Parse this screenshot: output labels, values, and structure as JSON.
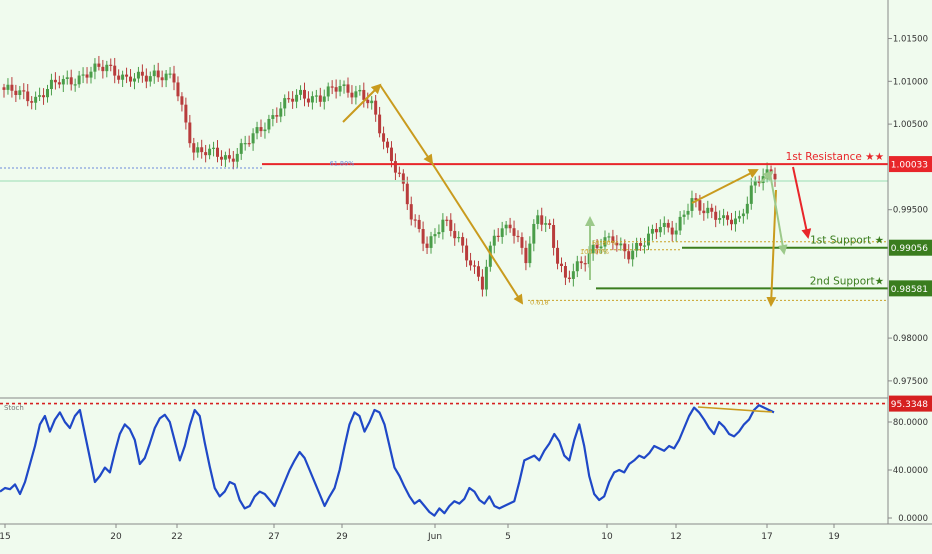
{
  "colors": {
    "background": "#f0fbee",
    "candle_up": "#4a9d49",
    "candle_down": "#b83c3c",
    "resistance": "#e8262a",
    "support": "#3a7d1e",
    "arrow_gold": "#c99b1e",
    "arrow_green": "#9cc98a",
    "fib_line": "#c9a227",
    "stoch": "#1f48c7",
    "stoch_ref": "#d62020",
    "axis_text": "#333333",
    "ma_line": "#7bd09e"
  },
  "chart_data": [
    {
      "type": "candlestick",
      "title": "",
      "ylim": [
        0.973,
        1.0195
      ],
      "ytick_labels": [
        "1.01500",
        "1.01000",
        "1.00500",
        "0.99500",
        "0.98000",
        "0.97500"
      ],
      "ytick_values": [
        1.015,
        1.01,
        1.005,
        0.995,
        0.98,
        0.975
      ],
      "price_tags": [
        {
          "name": "resistance",
          "label": "1.00033",
          "value": 1.00033
        },
        {
          "name": "support-1",
          "label": "0.99056",
          "value": 0.99056
        },
        {
          "name": "support-2",
          "label": "0.98581",
          "value": 0.98581
        }
      ],
      "levels": [
        {
          "name": "resistance",
          "label": "1st Resistance ★★",
          "value": 1.00033
        },
        {
          "name": "support-1",
          "label": "1st Support ★",
          "value": 0.99056
        },
        {
          "name": "support-2",
          "label": "2nd Support★",
          "value": 0.98581
        }
      ],
      "fib_labels": [
        {
          "label": "61.80%",
          "value": 1.0005
        },
        {
          "label": "0.618",
          "value": 0.9843
        },
        {
          "label": "61.80%",
          "value": 0.9912
        },
        {
          "label": "100.00%",
          "value": 0.9902
        }
      ],
      "xtick_labels": [
        "15",
        "20",
        "22",
        "27",
        "29",
        "Jun",
        "5",
        "10",
        "12",
        "17",
        "19"
      ],
      "price_anchors": [
        [
          0,
          1.009
        ],
        [
          8,
          1.008
        ],
        [
          14,
          1.01
        ],
        [
          20,
          1.0105
        ],
        [
          26,
          1.012
        ],
        [
          31,
          1.01
        ],
        [
          38,
          1.011
        ],
        [
          43,
          1.01
        ],
        [
          48,
          1.002
        ],
        [
          53,
          1.0015
        ],
        [
          57,
          1.001
        ],
        [
          62,
          1.003
        ],
        [
          66,
          1.005
        ],
        [
          70,
          1.007
        ],
        [
          75,
          1.0085
        ],
        [
          80,
          1.008
        ],
        [
          85,
          1.0095
        ],
        [
          90,
          1.0085
        ],
        [
          93,
          1.007
        ],
        [
          97,
          1.002
        ],
        [
          100,
          0.999
        ],
        [
          103,
          0.994
        ],
        [
          107,
          0.991
        ],
        [
          111,
          0.9935
        ],
        [
          115,
          0.9915
        ],
        [
          118,
          0.989
        ],
        [
          121,
          0.986
        ],
        [
          124,
          0.992
        ],
        [
          128,
          0.9935
        ],
        [
          132,
          0.989
        ],
        [
          135,
          0.9945
        ],
        [
          138,
          0.993
        ],
        [
          140,
          0.989
        ],
        [
          142,
          0.9865
        ],
        [
          145,
          0.9885
        ],
        [
          149,
          0.9905
        ],
        [
          154,
          0.9915
        ],
        [
          158,
          0.99
        ],
        [
          162,
          0.991
        ],
        [
          166,
          0.9935
        ],
        [
          170,
          0.9925
        ],
        [
          174,
          0.996
        ],
        [
          178,
          0.995
        ],
        [
          182,
          0.9935
        ],
        [
          186,
          0.994
        ],
        [
          189,
          0.9975
        ],
        [
          192,
          0.9988
        ],
        [
          195,
          0.9992
        ]
      ]
    },
    {
      "type": "line",
      "title": "Stoch",
      "ylim": [
        -5,
        100
      ],
      "ytick_labels": [
        "80.0000",
        "40.0000",
        "0.0000"
      ],
      "ytick_values": [
        80,
        40,
        0
      ],
      "reference": {
        "label": "95.3348",
        "value": 95.3348
      },
      "series": [
        {
          "name": "",
          "values": [
            22,
            25,
            24,
            28,
            20,
            30,
            45,
            60,
            78,
            85,
            72,
            82,
            88,
            80,
            75,
            85,
            90,
            70,
            50,
            30,
            35,
            42,
            38,
            55,
            70,
            78,
            74,
            65,
            45,
            50,
            62,
            75,
            83,
            86,
            80,
            64,
            48,
            60,
            77,
            90,
            85,
            63,
            43,
            25,
            18,
            22,
            30,
            28,
            15,
            8,
            10,
            18,
            22,
            20,
            15,
            10,
            20,
            30,
            40,
            48,
            55,
            50,
            40,
            30,
            20,
            10,
            18,
            25,
            40,
            60,
            78,
            88,
            85,
            72,
            80,
            90,
            88,
            78,
            60,
            42,
            35,
            26,
            18,
            12,
            15,
            10,
            5,
            2,
            8,
            4,
            10,
            14,
            12,
            16,
            25,
            22,
            15,
            12,
            18,
            10,
            8,
            10,
            12,
            14,
            30,
            48,
            50,
            52,
            48,
            56,
            62,
            70,
            64,
            52,
            48,
            65,
            78,
            60,
            35,
            20,
            15,
            18,
            30,
            38,
            40,
            38,
            45,
            48,
            52,
            50,
            54,
            60,
            58,
            56,
            60,
            58,
            65,
            75,
            85,
            92,
            88,
            82,
            75,
            70,
            80,
            76,
            70,
            68,
            72,
            78,
            82,
            90,
            94,
            92,
            90,
            88
          ]
        }
      ]
    }
  ]
}
